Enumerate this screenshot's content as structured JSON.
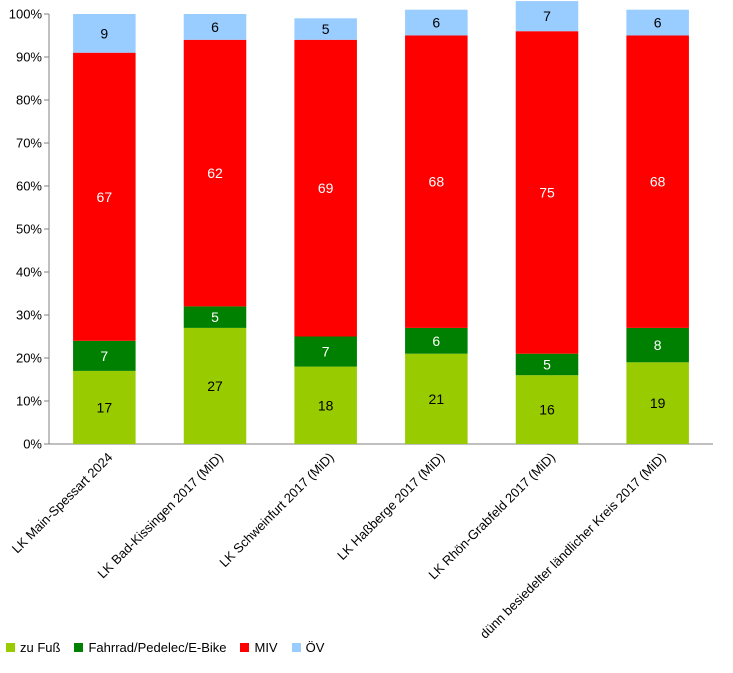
{
  "chart_data": {
    "type": "bar",
    "stacked": true,
    "percent": true,
    "categories": [
      "LK Main-Spessart 2024",
      "LK Bad-Kissingen 2017 (MiD)",
      "LK Schweinfurt 2017 (MiD)",
      "LK Haßberge 2017 (MiD)",
      "LK Rhön-Grabfeld 2017 (MiD)",
      "dünn besiedelter ländlicher Kreis 2017 (MiD)"
    ],
    "series": [
      {
        "name": "zu Fuß",
        "color": "#99CC00",
        "values": [
          17,
          27,
          18,
          21,
          16,
          19
        ],
        "label_color": "#000000"
      },
      {
        "name": "Fahrrad/Pedelec/E-Bike",
        "color": "#008000",
        "values": [
          7,
          5,
          7,
          6,
          5,
          8
        ],
        "label_color": "#ffffff"
      },
      {
        "name": "MIV",
        "color": "#FF0000",
        "values": [
          67,
          62,
          69,
          68,
          75,
          68
        ],
        "label_color": "#ffffff"
      },
      {
        "name": "ÖV",
        "color": "#99CCFF",
        "values": [
          9,
          6,
          5,
          6,
          7,
          6
        ],
        "label_color": "#000000"
      }
    ],
    "yticks": [
      "0%",
      "10%",
      "20%",
      "30%",
      "40%",
      "50%",
      "60%",
      "70%",
      "80%",
      "90%",
      "100%"
    ],
    "ylim": [
      0,
      100
    ],
    "grid": false,
    "legend_position": "bottom-left"
  }
}
